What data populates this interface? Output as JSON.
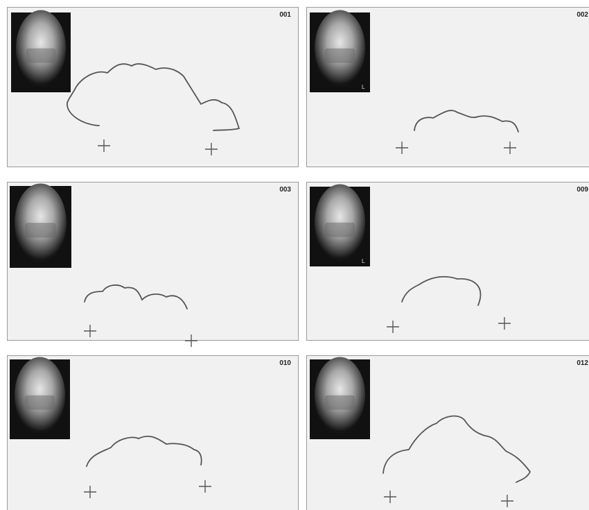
{
  "panels": [
    {
      "id": "001"
    },
    {
      "id": "002",
      "marker": "L"
    },
    {
      "id": "003"
    },
    {
      "id": "009",
      "marker": "L"
    },
    {
      "id": "010"
    },
    {
      "id": "012"
    }
  ]
}
